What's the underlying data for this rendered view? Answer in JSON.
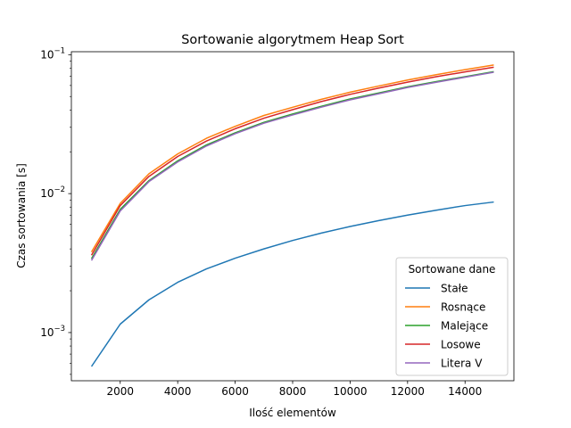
{
  "chart_data": {
    "type": "line",
    "title": "Sortowanie algorytmem Heap Sort",
    "xlabel": "Ilość elementów",
    "ylabel": "Czas sortowania [s]",
    "yscale": "log",
    "xlim": [
      300,
      15700
    ],
    "ylim": [
      0.00045,
      0.105
    ],
    "grid": false,
    "legend": {
      "title": "Sortowane dane",
      "placement": "lower right"
    },
    "x_ticks": [
      {
        "value": 2000,
        "label": "2000"
      },
      {
        "value": 4000,
        "label": "4000"
      },
      {
        "value": 6000,
        "label": "6000"
      },
      {
        "value": 8000,
        "label": "8000"
      },
      {
        "value": 10000,
        "label": "10000"
      },
      {
        "value": 12000,
        "label": "12000"
      },
      {
        "value": 14000,
        "label": "14000"
      }
    ],
    "y_ticks": [
      {
        "value": 0.001,
        "base": "10",
        "exp": "−3"
      },
      {
        "value": 0.01,
        "base": "10",
        "exp": "−2"
      },
      {
        "value": 0.1,
        "base": "10",
        "exp": "−1"
      }
    ],
    "x": [
      1000,
      2000,
      3000,
      4000,
      5000,
      6000,
      7000,
      8000,
      9000,
      10000,
      11000,
      12000,
      13000,
      14000,
      15000
    ],
    "series": [
      {
        "name": "Stałe",
        "color": "#1f77b4",
        "values": [
          0.00057,
          0.00115,
          0.00172,
          0.0023,
          0.00287,
          0.00343,
          0.004,
          0.0046,
          0.0052,
          0.0058,
          0.0064,
          0.007,
          0.0076,
          0.0082,
          0.0087
        ]
      },
      {
        "name": "Rosnące",
        "color": "#ff7f0e",
        "values": [
          0.0038,
          0.0085,
          0.0139,
          0.0193,
          0.025,
          0.0305,
          0.0365,
          0.0418,
          0.0477,
          0.0537,
          0.0595,
          0.0657,
          0.0718,
          0.078,
          0.0843
        ]
      },
      {
        "name": "Malejące",
        "color": "#2ca02c",
        "values": [
          0.0034,
          0.0077,
          0.0124,
          0.0172,
          0.0224,
          0.0274,
          0.0326,
          0.0374,
          0.0425,
          0.048,
          0.053,
          0.0587,
          0.064,
          0.0695,
          0.0755
        ]
      },
      {
        "name": "Losowe",
        "color": "#d62728",
        "values": [
          0.0036,
          0.0082,
          0.0133,
          0.0185,
          0.0239,
          0.0293,
          0.0349,
          0.0402,
          0.046,
          0.0518,
          0.0575,
          0.0634,
          0.0694,
          0.0752,
          0.0812
        ]
      },
      {
        "name": "Litera V",
        "color": "#9467bd",
        "values": [
          0.0033,
          0.0075,
          0.0122,
          0.0169,
          0.022,
          0.027,
          0.0321,
          0.0368,
          0.0419,
          0.0473,
          0.0523,
          0.058,
          0.0633,
          0.0688,
          0.0748
        ]
      }
    ]
  }
}
